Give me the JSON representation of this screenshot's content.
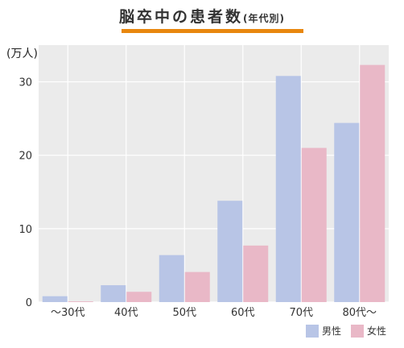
{
  "header": {
    "title": "脳卒中の患者数",
    "subtitle": "(年代別)",
    "bar_color": "#e8870e"
  },
  "chart_data": {
    "type": "bar",
    "title": "脳卒中の患者数(年代別)",
    "ylabel": "(万人)",
    "xlabel": "",
    "categories": [
      "～30代",
      "40代",
      "50代",
      "60代",
      "70代",
      "80代～"
    ],
    "series": [
      {
        "name": "男性",
        "color": "#b8c5e6",
        "values": [
          0.8,
          2.3,
          6.4,
          13.8,
          30.8,
          24.4
        ]
      },
      {
        "name": "女性",
        "color": "#e9b8c7",
        "values": [
          0.1,
          1.4,
          4.1,
          7.7,
          21.0,
          32.3
        ]
      }
    ],
    "ylim": [
      0,
      35
    ],
    "yticks": [
      0,
      10,
      20,
      30
    ],
    "grid": true,
    "legend_position": "bottom-right",
    "plot_background": "#ebebeb"
  }
}
